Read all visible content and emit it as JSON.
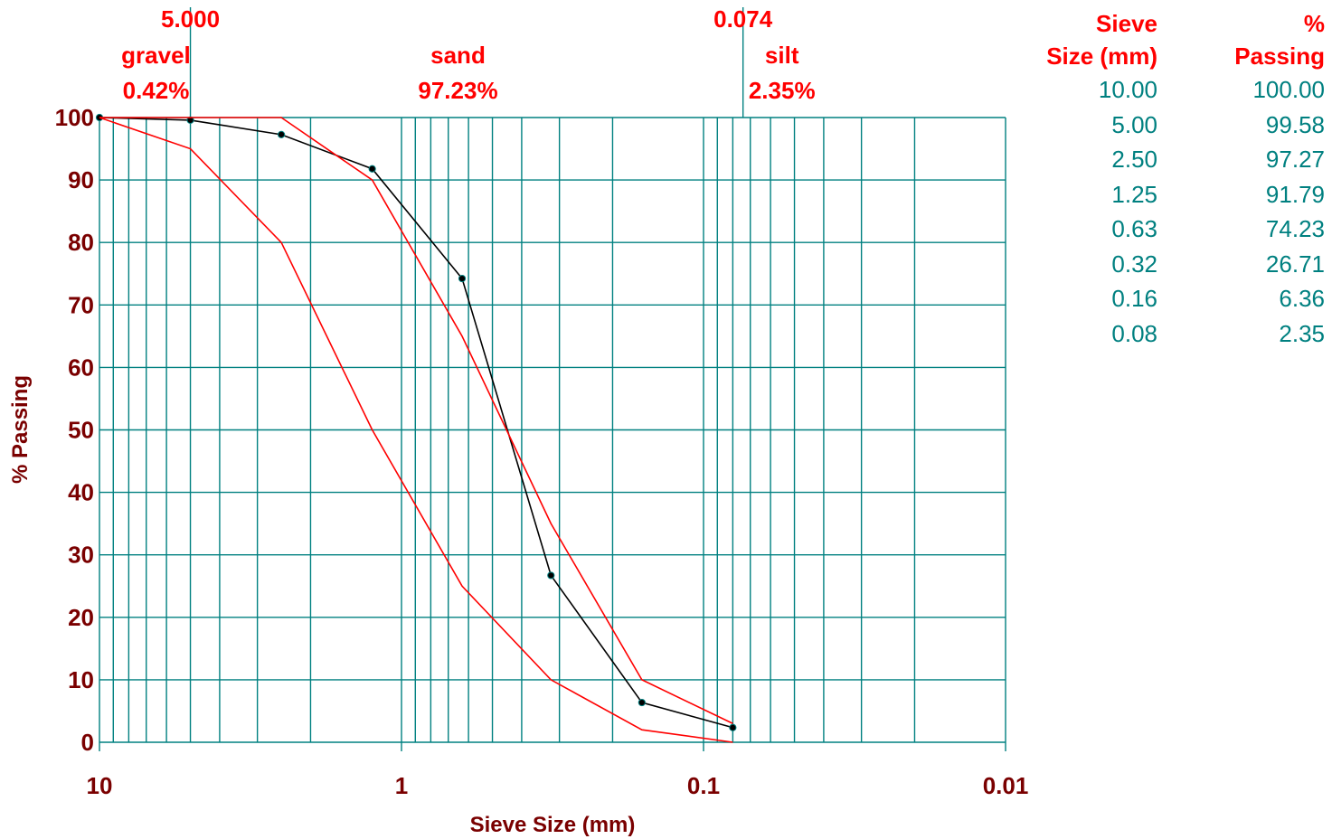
{
  "chart_data": {
    "type": "line",
    "xlabel": "Sieve Size (mm)",
    "ylabel": "% Passing",
    "x_scale": "log",
    "x_reversed": true,
    "xlim": [
      10,
      0.01
    ],
    "ylim": [
      0,
      100
    ],
    "grid": true,
    "x_ticks": [
      "10",
      "1",
      "0.1",
      "0.01"
    ],
    "y_ticks": [
      "0",
      "10",
      "20",
      "30",
      "40",
      "50",
      "60",
      "70",
      "80",
      "90",
      "100"
    ],
    "boundaries": [
      {
        "x": 5.0,
        "size_label": "5.000"
      },
      {
        "x": 0.074,
        "size_label": "0.074"
      }
    ],
    "zones": [
      {
        "name": "gravel",
        "percent": "0.42%",
        "x": 6.5
      },
      {
        "name": "sand",
        "percent": "97.23%",
        "x": 0.65
      },
      {
        "name": "silt",
        "percent": "2.35%",
        "x": 0.055
      }
    ],
    "series": [
      {
        "color": "#000000",
        "markers": true,
        "x": [
          10.0,
          5.0,
          2.5,
          1.25,
          0.63,
          0.32,
          0.16,
          0.08
        ],
        "y": [
          100.0,
          99.58,
          97.27,
          91.79,
          74.23,
          26.71,
          6.36,
          2.35
        ]
      },
      {
        "color": "#ff0000",
        "markers": false,
        "x": [
          10.0,
          5.0,
          2.5,
          1.25,
          0.63,
          0.32,
          0.16,
          0.08
        ],
        "y": [
          100,
          100,
          100,
          90,
          65,
          35,
          10,
          3
        ]
      },
      {
        "color": "#ff0000",
        "markers": false,
        "x": [
          10.0,
          5.0,
          2.5,
          1.25,
          0.63,
          0.32,
          0.16,
          0.08
        ],
        "y": [
          100,
          95,
          80,
          50,
          25,
          10,
          2,
          0
        ]
      }
    ],
    "table": {
      "headers": [
        "Sieve\nSize (mm)",
        "%\nPassing"
      ],
      "rows": [
        [
          "10.00",
          "100.00"
        ],
        [
          "5.00",
          "99.58"
        ],
        [
          "2.50",
          "97.27"
        ],
        [
          "1.25",
          "91.79"
        ],
        [
          "0.63",
          "74.23"
        ],
        [
          "0.32",
          "26.71"
        ],
        [
          "0.16",
          "6.36"
        ],
        [
          "0.08",
          "2.35"
        ]
      ]
    }
  },
  "colors": {
    "grid": "#008080",
    "axis_text": "#7a0000",
    "accent": "#ff0000",
    "table_text": "#008080"
  }
}
